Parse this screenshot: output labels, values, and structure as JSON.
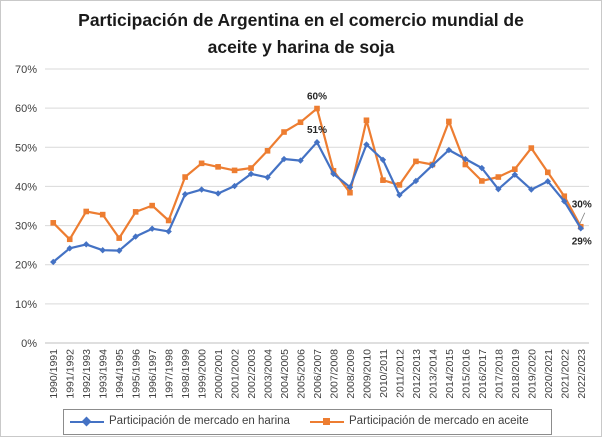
{
  "chart_data": {
    "type": "line",
    "title": "Participación de Argentina en el comercio mundial de aceite y harina de soja",
    "title_lines": [
      "Participación de Argentina en el comercio mundial de",
      "aceite y harina de soja"
    ],
    "xlabel": "",
    "ylabel": "",
    "ylim": [
      0,
      0.7
    ],
    "yticks": [
      0,
      0.1,
      0.2,
      0.3,
      0.4,
      0.5,
      0.6,
      0.7
    ],
    "ytick_labels": [
      "0%",
      "10%",
      "20%",
      "30%",
      "40%",
      "50%",
      "60%",
      "70%"
    ],
    "grid": true,
    "legend_position": "bottom",
    "categories": [
      "1990/1991",
      "1991/1992",
      "1992/1993",
      "1993/1994",
      "1994/1995",
      "1995/1996",
      "1996/1997",
      "1997/1998",
      "1998/1999",
      "1999/2000",
      "2000/2001",
      "2001/2002",
      "2002/2003",
      "2003/2004",
      "2004/2005",
      "2005/2006",
      "2006/2007",
      "2007/2008",
      "2008/2009",
      "2009/2010",
      "2010/2011",
      "2011/2012",
      "2012/2013",
      "2013/2014",
      "2014/2015",
      "2015/2016",
      "2016/2017",
      "2017/2018",
      "2018/2019",
      "2019/2020",
      "2020/2021",
      "2021/2022",
      "2022/2023"
    ],
    "series": [
      {
        "name": "Participación de mercado en harina",
        "color": "#4472c4",
        "marker": "diamond",
        "values": [
          0.207,
          0.242,
          0.252,
          0.237,
          0.236,
          0.272,
          0.292,
          0.285,
          0.38,
          0.392,
          0.382,
          0.401,
          0.432,
          0.423,
          0.47,
          0.466,
          0.513,
          0.432,
          0.398,
          0.507,
          0.468,
          0.378,
          0.414,
          0.454,
          0.493,
          0.47,
          0.447,
          0.393,
          0.43,
          0.392,
          0.413,
          0.362,
          0.293
        ]
      },
      {
        "name": "Participación de mercado en aceite",
        "color": "#ed7d31",
        "marker": "square",
        "values": [
          0.307,
          0.265,
          0.336,
          0.328,
          0.268,
          0.335,
          0.351,
          0.313,
          0.424,
          0.459,
          0.45,
          0.441,
          0.447,
          0.491,
          0.539,
          0.564,
          0.599,
          0.44,
          0.384,
          0.569,
          0.416,
          0.404,
          0.464,
          0.456,
          0.566,
          0.456,
          0.414,
          0.424,
          0.444,
          0.498,
          0.436,
          0.375,
          0.297
        ]
      }
    ],
    "annotations": [
      {
        "text": "60%",
        "series": 1,
        "index": 16,
        "placement": "above"
      },
      {
        "text": "51%",
        "series": 0,
        "index": 16,
        "placement": "above"
      },
      {
        "text": "30%",
        "series": 1,
        "index": 32,
        "placement": "above"
      },
      {
        "text": "29%",
        "series": 0,
        "index": 32,
        "placement": "below"
      }
    ]
  }
}
